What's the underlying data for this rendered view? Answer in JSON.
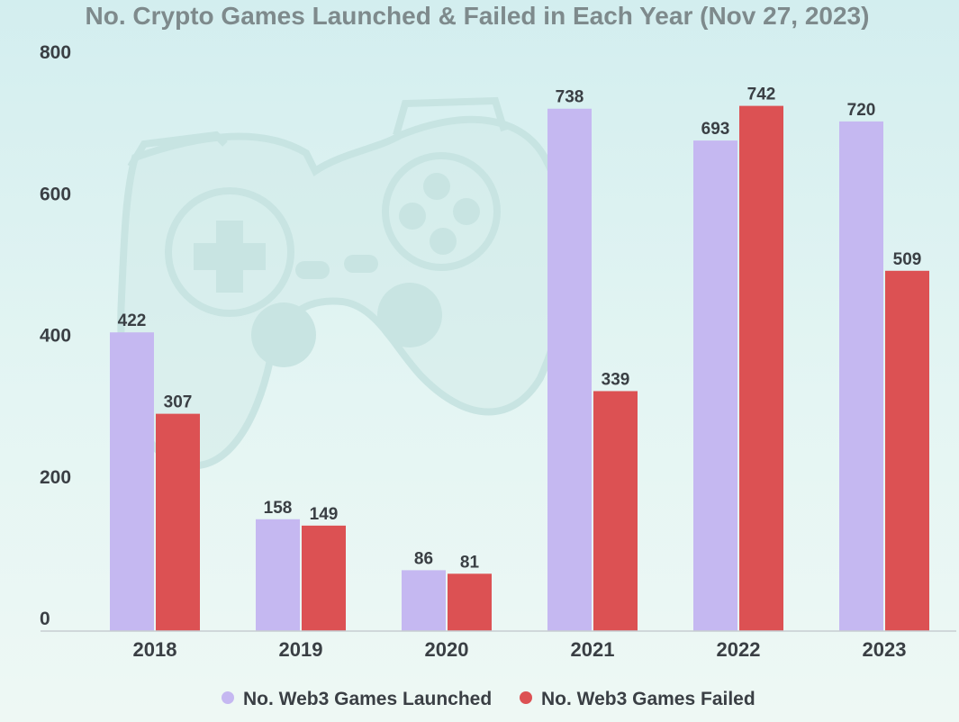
{
  "chart_data": {
    "type": "bar",
    "title": "No. Crypto Games Launched & Failed in Each Year (Nov 27, 2023)",
    "xlabel": "",
    "ylabel": "",
    "categories": [
      "2018",
      "2019",
      "2020",
      "2021",
      "2022",
      "2023"
    ],
    "ylim": [
      0,
      800
    ],
    "yticks": [
      0,
      200,
      400,
      600,
      800
    ],
    "grid": false,
    "legend_position": "bottom-center",
    "series": [
      {
        "name": "No. Web3 Games Launched",
        "color": "#c5b8f1",
        "values": [
          422,
          158,
          86,
          738,
          693,
          720
        ]
      },
      {
        "name": "No. Web3 Games Failed",
        "color": "#dc5153",
        "values": [
          307,
          149,
          81,
          339,
          742,
          509
        ]
      }
    ]
  },
  "background": {
    "watermark_icon": "game-controller-icon"
  }
}
